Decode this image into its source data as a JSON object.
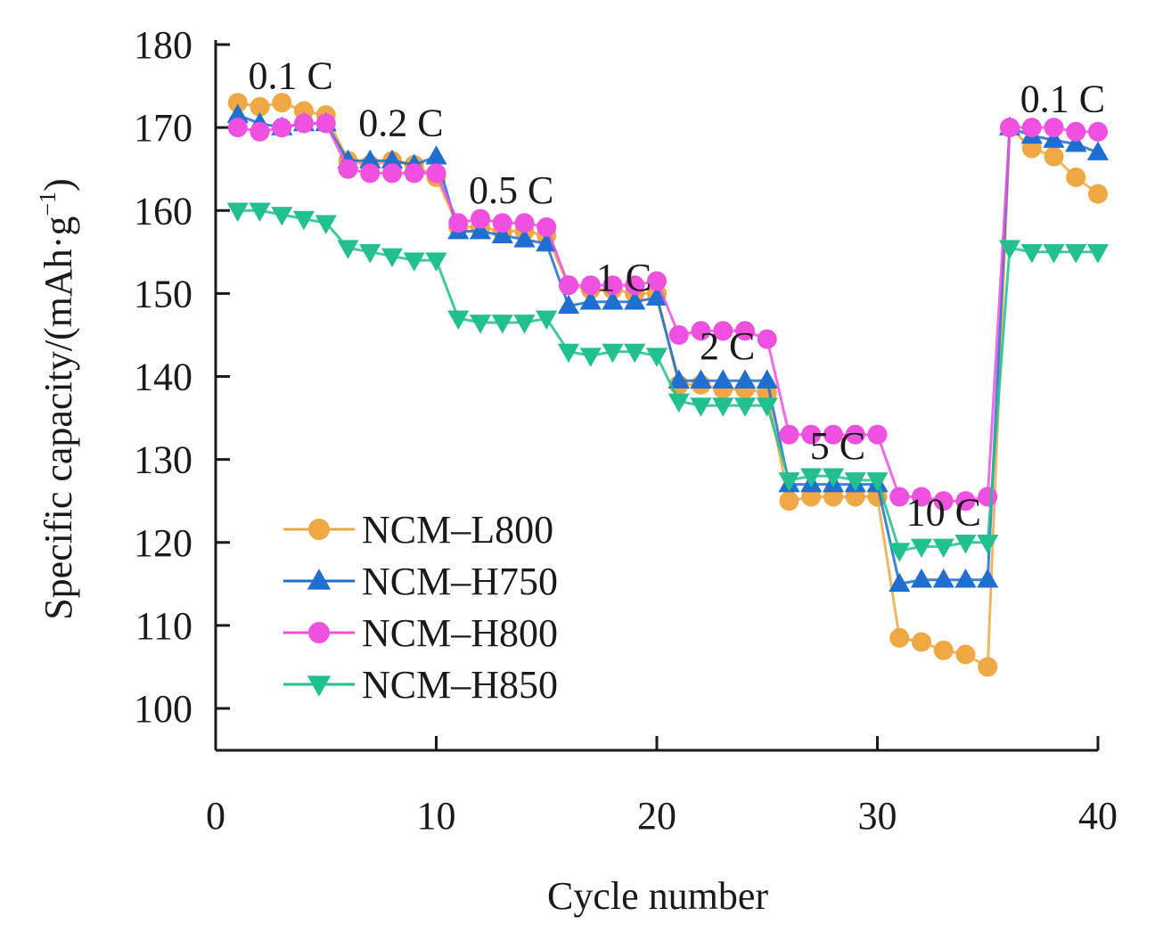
{
  "chart_data": {
    "type": "line",
    "title": "",
    "xlabel": "Cycle number",
    "ylabel": "Specific capacity/(mAh·g⁻¹)",
    "ylabel_main": "Specific capacity/(mAh·g",
    "ylabel_sup": "−1",
    "ylabel_end": ")",
    "xlim": [
      0,
      40
    ],
    "ylim": [
      95,
      180
    ],
    "x_ticks": [
      0,
      10,
      20,
      30,
      40
    ],
    "y_ticks": [
      100,
      110,
      120,
      130,
      140,
      150,
      160,
      170,
      180
    ],
    "x_tick_labels": [
      "0",
      "10",
      "20",
      "30",
      "40"
    ],
    "y_tick_labels": [
      "100",
      "110",
      "120",
      "130",
      "140",
      "150",
      "160",
      "170",
      "180"
    ],
    "legend_position": "bottom-left",
    "rate_labels": [
      {
        "text": "0.1 C",
        "x": 3.4,
        "y": 176.3
      },
      {
        "text": "0.2 C",
        "x": 8.4,
        "y": 170.6
      },
      {
        "text": "0.5 C",
        "x": 13.4,
        "y": 162.5
      },
      {
        "text": "1 C",
        "x": 18.5,
        "y": 152.0
      },
      {
        "text": "2 C",
        "x": 23.2,
        "y": 143.7
      },
      {
        "text": "5 C",
        "x": 28.2,
        "y": 131.7
      },
      {
        "text": "10 C",
        "x": 33.0,
        "y": 123.7
      },
      {
        "text": "0.1 C",
        "x": 38.4,
        "y": 173.5
      }
    ],
    "series": [
      {
        "name": "NCM–L800",
        "color": "#f0a845",
        "marker": "circle",
        "x": [
          1,
          2,
          3,
          4,
          5,
          6,
          7,
          8,
          9,
          10,
          11,
          12,
          13,
          14,
          15,
          16,
          17,
          18,
          19,
          20,
          21,
          22,
          23,
          24,
          25,
          26,
          27,
          28,
          29,
          30,
          31,
          32,
          33,
          34,
          35,
          36,
          37,
          38,
          39,
          40
        ],
        "values": [
          173,
          172.5,
          173,
          172,
          171.5,
          166,
          165.5,
          166,
          165.5,
          164,
          158,
          158,
          157.5,
          157.5,
          157,
          151,
          150.5,
          150.5,
          150,
          150,
          139,
          139,
          138.5,
          138.5,
          138,
          125,
          125.5,
          125.5,
          125.5,
          125.5,
          108.5,
          108,
          107,
          106.5,
          105,
          170,
          167.5,
          166.5,
          164,
          162
        ]
      },
      {
        "name": "NCM–H750",
        "color": "#1f6fd1",
        "marker": "triangle-up",
        "x": [
          1,
          2,
          3,
          4,
          5,
          6,
          7,
          8,
          9,
          10,
          11,
          12,
          13,
          14,
          15,
          16,
          17,
          18,
          19,
          20,
          21,
          22,
          23,
          24,
          25,
          26,
          27,
          28,
          29,
          30,
          31,
          32,
          33,
          34,
          35,
          36,
          37,
          38,
          39,
          40
        ],
        "values": [
          171.5,
          170.5,
          170,
          170.5,
          170.5,
          166,
          166,
          166,
          165.5,
          166.5,
          157.5,
          157.5,
          157,
          156.5,
          156,
          148.5,
          149,
          149,
          149,
          149.5,
          139.5,
          139.5,
          139.5,
          139.5,
          139.5,
          127,
          127,
          127,
          127,
          127,
          115,
          115.5,
          115.5,
          115.5,
          115.5,
          170,
          169,
          168.5,
          168,
          167
        ]
      },
      {
        "name": "NCM–H800",
        "color": "#f050e0",
        "marker": "circle",
        "x": [
          1,
          2,
          3,
          4,
          5,
          6,
          7,
          8,
          9,
          10,
          11,
          12,
          13,
          14,
          15,
          16,
          17,
          18,
          19,
          20,
          21,
          22,
          23,
          24,
          25,
          26,
          27,
          28,
          29,
          30,
          31,
          32,
          33,
          34,
          35,
          36,
          37,
          38,
          39,
          40
        ],
        "values": [
          170,
          169.5,
          170,
          170.5,
          170.5,
          165,
          164.5,
          164.5,
          164.5,
          164.5,
          158.5,
          159,
          158.5,
          158.5,
          158,
          151,
          151,
          151,
          151,
          151.5,
          145,
          145.5,
          145.5,
          145.5,
          144.5,
          133,
          133,
          133,
          133,
          133,
          125.5,
          125.5,
          125,
          125,
          125.5,
          170,
          170,
          170,
          169.5,
          169.5
        ]
      },
      {
        "name": "NCM–H850",
        "color": "#22c08f",
        "marker": "triangle-down",
        "x": [
          1,
          2,
          3,
          4,
          5,
          6,
          7,
          8,
          9,
          10,
          11,
          12,
          13,
          14,
          15,
          16,
          17,
          18,
          19,
          20,
          21,
          22,
          23,
          24,
          25,
          26,
          27,
          28,
          29,
          30,
          31,
          32,
          33,
          34,
          35,
          36,
          37,
          38,
          39,
          40
        ],
        "values": [
          160,
          160,
          159.5,
          159,
          158.5,
          155.5,
          155,
          154.5,
          154,
          154,
          147,
          146.5,
          146.5,
          146.5,
          147,
          143,
          142.5,
          143,
          143,
          142.5,
          137,
          136.5,
          136.5,
          136.5,
          136.5,
          127.5,
          128,
          128,
          127.5,
          127.5,
          119,
          119.5,
          119.5,
          120,
          120,
          155.5,
          155,
          155,
          155,
          155
        ]
      }
    ]
  }
}
